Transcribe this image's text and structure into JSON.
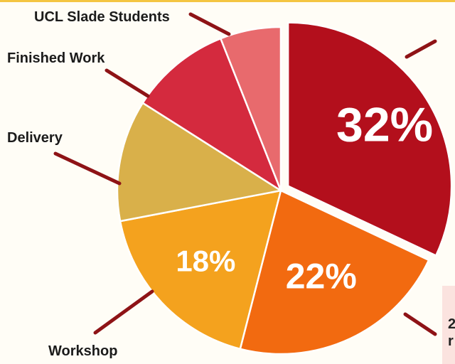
{
  "chart_data": {
    "type": "pie",
    "title": "",
    "slices": [
      {
        "label": "",
        "value": 32,
        "display": "32%",
        "color": "#b30f1c"
      },
      {
        "label": "",
        "value": 22,
        "display": "22%",
        "color": "#f26a10"
      },
      {
        "label": "Workshop",
        "value": 18,
        "display": "18%",
        "color": "#f4a21e"
      },
      {
        "label": "Delivery",
        "value": 12,
        "display": "",
        "color": "#d9b04a"
      },
      {
        "label": "Finished Work",
        "value": 10,
        "display": "",
        "color": "#d42a3e"
      },
      {
        "label": "UCL Slade Students",
        "value": 6,
        "display": "",
        "color": "#e86a6d"
      }
    ],
    "leader_color": "#8e1316",
    "legend": "none"
  },
  "edge_text": {
    "line1": "2",
    "line2": "r"
  }
}
